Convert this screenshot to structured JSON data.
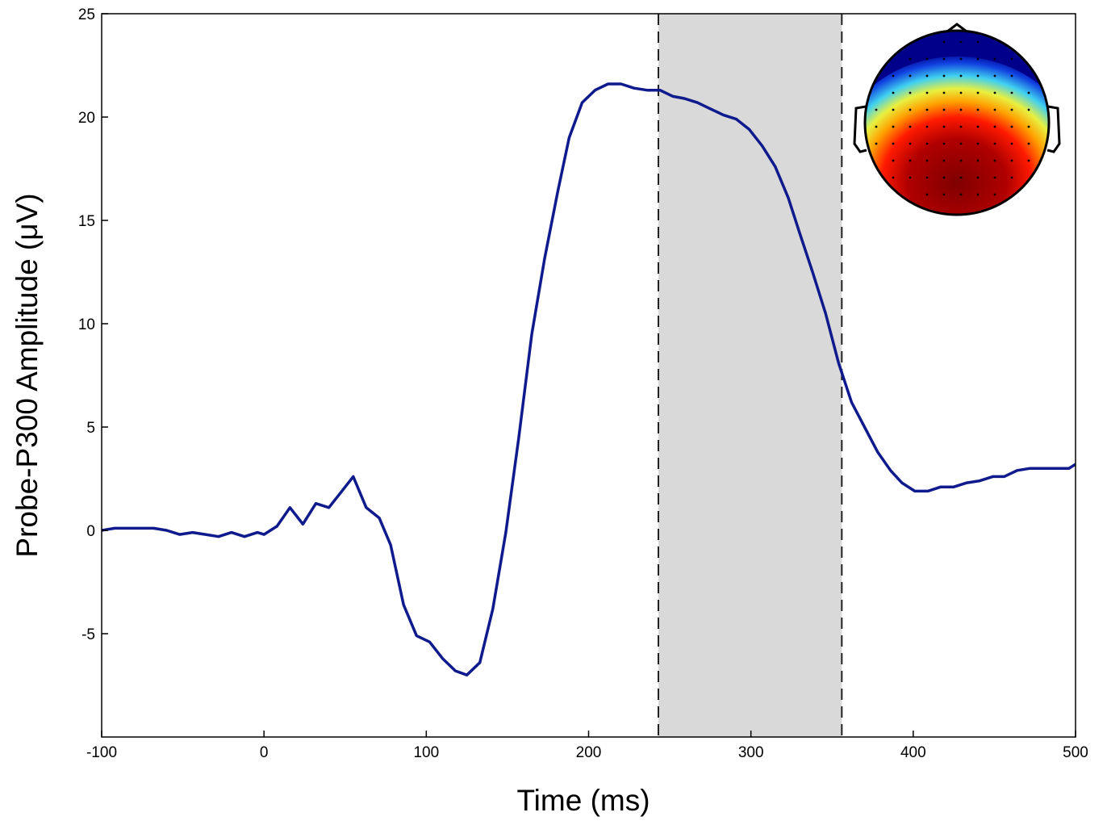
{
  "chart_data": {
    "type": "line",
    "title": "",
    "xlabel": "Time (ms)",
    "ylabel": "Probe-P300 Amplitude (μV)",
    "xlim": [
      -100,
      500
    ],
    "ylim": [
      -10,
      25
    ],
    "xticks": [
      -100,
      0,
      100,
      200,
      300,
      400,
      500
    ],
    "yticks": [
      -5,
      0,
      5,
      10,
      15,
      20,
      25
    ],
    "grid": false,
    "legend": "none",
    "shaded_window": {
      "x_start": 243,
      "x_end": 356,
      "color": "#d9d9d9",
      "border": "dashed"
    },
    "line_color": "#0f1a8c",
    "series": [
      {
        "x": [
          -100,
          -92,
          -84,
          -76,
          -68,
          -60,
          -52,
          -44,
          -36,
          -28,
          -20,
          -12,
          -4,
          0,
          8,
          16,
          24,
          32,
          40,
          48,
          55,
          63,
          71,
          78,
          86,
          94,
          102,
          110,
          118,
          125,
          133,
          141,
          149,
          157,
          165,
          173,
          181,
          188,
          196,
          204,
          212,
          220,
          228,
          236,
          244,
          252,
          259,
          267,
          275,
          283,
          291,
          299,
          307,
          315,
          323,
          330,
          338,
          346,
          354,
          362,
          370,
          378,
          386,
          393,
          401,
          409,
          417,
          425,
          433,
          441,
          449,
          456,
          464,
          472,
          480,
          488,
          496,
          500
        ],
        "y": [
          0,
          0.1,
          0.1,
          0.1,
          0.1,
          0,
          -0.2,
          -0.1,
          -0.2,
          -0.3,
          -0.1,
          -0.3,
          -0.1,
          -0.2,
          0.2,
          1.1,
          0.3,
          1.3,
          1.1,
          1.9,
          2.6,
          1.1,
          0.6,
          -0.7,
          -3.6,
          -5.1,
          -5.4,
          -6.2,
          -6.8,
          -7,
          -6.4,
          -3.8,
          -0.1,
          4.5,
          9.5,
          13.2,
          16.4,
          19,
          20.7,
          21.3,
          21.6,
          21.6,
          21.4,
          21.3,
          21.3,
          21,
          20.9,
          20.7,
          20.4,
          20.1,
          19.9,
          19.4,
          18.6,
          17.6,
          16.1,
          14.4,
          12.5,
          10.5,
          8.1,
          6.2,
          5,
          3.8,
          2.9,
          2.3,
          1.9,
          1.9,
          2.1,
          2.1,
          2.3,
          2.4,
          2.6,
          2.6,
          2.9,
          3,
          3,
          3,
          3,
          3.2
        ]
      }
    ],
    "inset": {
      "type": "topographic-scalp-map",
      "colormap": [
        "#000080",
        "#0000ff",
        "#00ffff",
        "#ffff00",
        "#ff0000",
        "#800000"
      ]
    }
  }
}
